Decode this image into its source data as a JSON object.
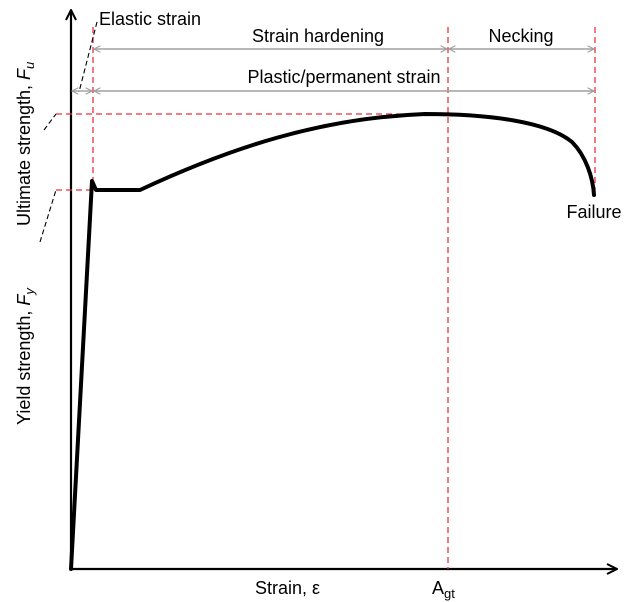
{
  "labels": {
    "elastic_strain": "Elastic strain",
    "strain_hardening": "Strain hardening",
    "necking": "Necking",
    "plastic_strain": "Plastic/permanent strain",
    "failure": "Failure",
    "x_axis": "Strain, ε",
    "agt_main": "A",
    "agt_sub": "gt",
    "ultimate_text": "Ultimate strength, ",
    "ultimate_symbol": "F",
    "ultimate_sub": "u",
    "yield_text": "Yield strength, ",
    "yield_symbol": "F",
    "yield_sub": "y"
  },
  "colors": {
    "curve": "#000000",
    "axis": "#000000",
    "guide": "#e8323c",
    "dimension": "#a0a0a0"
  }
}
